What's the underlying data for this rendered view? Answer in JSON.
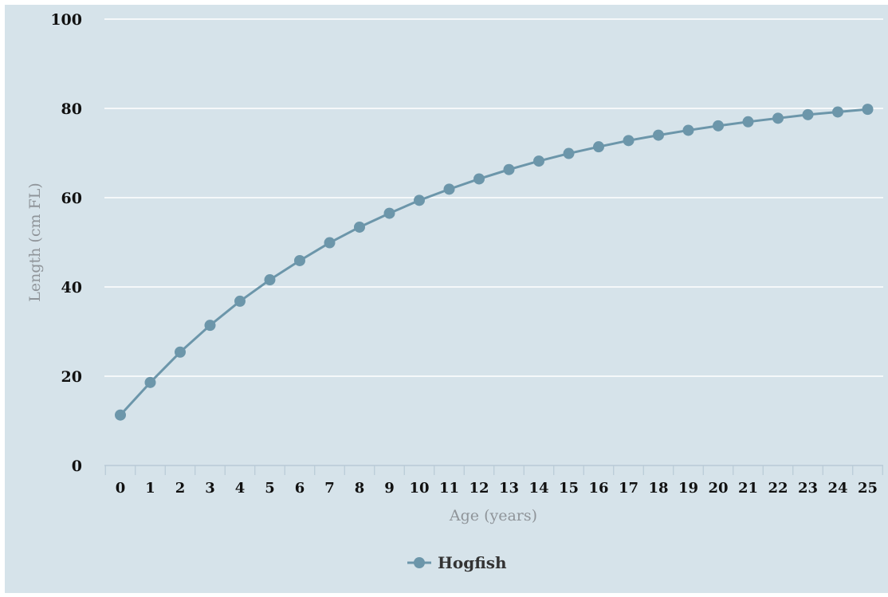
{
  "chart_data": {
    "type": "line",
    "title": "",
    "xlabel": "Age (years)",
    "ylabel": "Length (cm FL)",
    "ylim": [
      0,
      100
    ],
    "yticks": [
      "0",
      "20",
      "40",
      "60",
      "80",
      "100"
    ],
    "categories": [
      "0",
      "1",
      "2",
      "3",
      "4",
      "5",
      "6",
      "7",
      "8",
      "9",
      "10",
      "11",
      "12",
      "13",
      "14",
      "15",
      "16",
      "17",
      "18",
      "19",
      "20",
      "21",
      "22",
      "23",
      "24",
      "25"
    ],
    "series": [
      {
        "name": "Hogfish",
        "values": [
          11.3,
          18.6,
          25.4,
          31.4,
          36.8,
          41.6,
          45.9,
          49.9,
          53.4,
          56.5,
          59.4,
          61.9,
          64.2,
          66.3,
          68.2,
          69.9,
          71.4,
          72.8,
          74.0,
          75.1,
          76.1,
          77.0,
          77.8,
          78.6,
          79.2,
          79.8
        ]
      }
    ],
    "grid": true,
    "legend_position": "bottom-center",
    "colors": {
      "background": "#d6e3ea",
      "series": "#6c96aa",
      "grid": "#ffffff"
    }
  }
}
